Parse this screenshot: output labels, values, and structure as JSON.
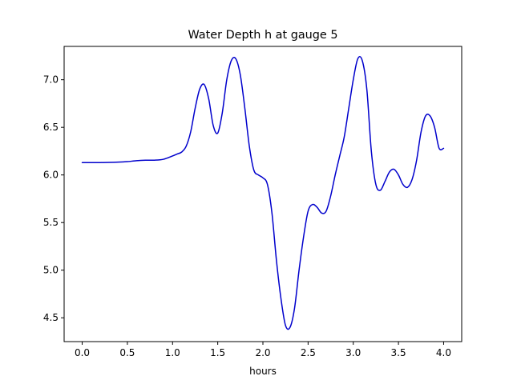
{
  "chart_data": {
    "type": "line",
    "title": "Water Depth h at gauge 5",
    "xlabel": "hours",
    "ylabel": "",
    "xlim": [
      -0.2,
      4.2
    ],
    "ylim": [
      4.25,
      7.35
    ],
    "grid": false,
    "legend": "none",
    "xticks": [
      {
        "value": 0.0,
        "label": "0.0"
      },
      {
        "value": 0.5,
        "label": "0.5"
      },
      {
        "value": 1.0,
        "label": "1.0"
      },
      {
        "value": 1.5,
        "label": "1.5"
      },
      {
        "value": 2.0,
        "label": "2.0"
      },
      {
        "value": 2.5,
        "label": "2.5"
      },
      {
        "value": 3.0,
        "label": "3.0"
      },
      {
        "value": 3.5,
        "label": "3.5"
      },
      {
        "value": 4.0,
        "label": "4.0"
      }
    ],
    "yticks": [
      {
        "value": 4.5,
        "label": "4.5"
      },
      {
        "value": 5.0,
        "label": "5.0"
      },
      {
        "value": 5.5,
        "label": "5.5"
      },
      {
        "value": 6.0,
        "label": "6.0"
      },
      {
        "value": 6.5,
        "label": "6.5"
      },
      {
        "value": 7.0,
        "label": "7.0"
      }
    ],
    "series": [
      {
        "color": "#0000cc",
        "x": [
          0.0,
          0.2,
          0.4,
          0.5,
          0.6,
          0.7,
          0.8,
          0.9,
          1.0,
          1.05,
          1.1,
          1.15,
          1.2,
          1.25,
          1.3,
          1.35,
          1.4,
          1.45,
          1.5,
          1.55,
          1.6,
          1.65,
          1.7,
          1.75,
          1.8,
          1.85,
          1.9,
          1.95,
          2.0,
          2.05,
          2.1,
          2.15,
          2.2,
          2.25,
          2.3,
          2.35,
          2.4,
          2.45,
          2.5,
          2.55,
          2.6,
          2.65,
          2.7,
          2.75,
          2.8,
          2.85,
          2.9,
          2.95,
          3.0,
          3.05,
          3.1,
          3.15,
          3.2,
          3.25,
          3.3,
          3.35,
          3.4,
          3.45,
          3.5,
          3.55,
          3.6,
          3.65,
          3.7,
          3.75,
          3.8,
          3.85,
          3.9,
          3.95,
          4.0
        ],
        "y": [
          6.13,
          6.13,
          6.135,
          6.14,
          6.15,
          6.155,
          6.155,
          6.165,
          6.2,
          6.22,
          6.24,
          6.3,
          6.45,
          6.7,
          6.9,
          6.95,
          6.8,
          6.52,
          6.44,
          6.65,
          7.0,
          7.2,
          7.22,
          7.05,
          6.7,
          6.3,
          6.05,
          6.0,
          5.97,
          5.9,
          5.6,
          5.1,
          4.7,
          4.42,
          4.4,
          4.6,
          5.0,
          5.35,
          5.62,
          5.69,
          5.66,
          5.6,
          5.62,
          5.78,
          6.0,
          6.2,
          6.4,
          6.7,
          7.0,
          7.22,
          7.2,
          6.9,
          6.25,
          5.9,
          5.84,
          5.93,
          6.03,
          6.06,
          6.0,
          5.9,
          5.87,
          5.95,
          6.15,
          6.45,
          6.62,
          6.62,
          6.5,
          6.28,
          6.28
        ]
      }
    ]
  }
}
